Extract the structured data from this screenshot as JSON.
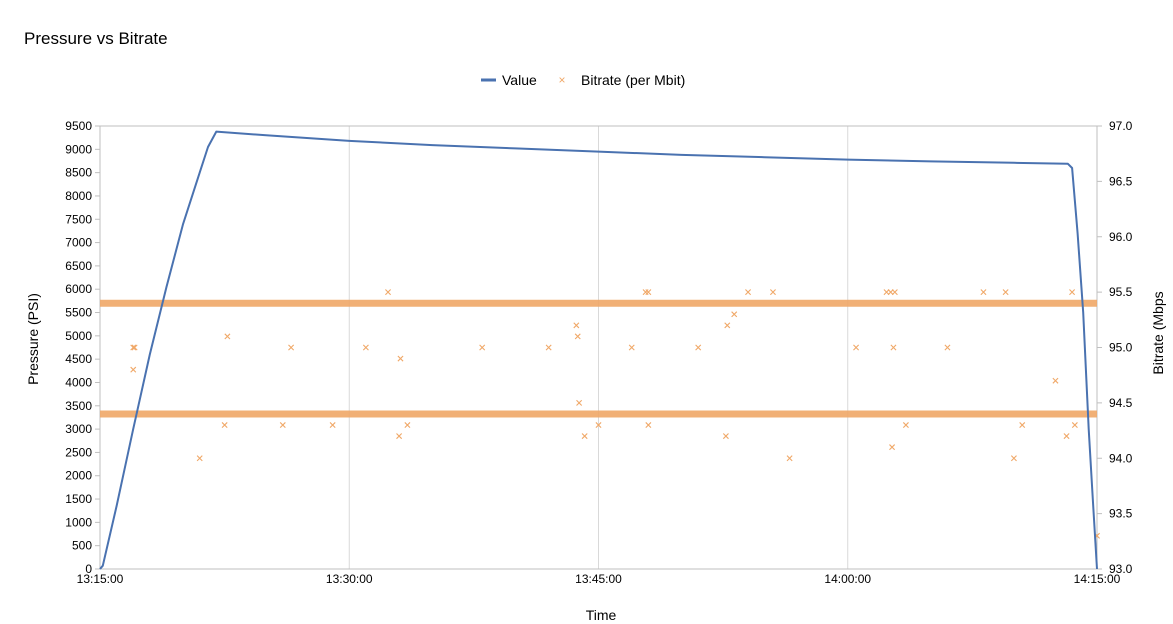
{
  "chart_data": {
    "type": "line",
    "title": "Pressure vs Bitrate",
    "xlabel": "Time",
    "ylabel": "Pressure (PSI)",
    "y2label": "Bitrate (Mbps",
    "xlim": [
      "13:15:00",
      "14:15:00"
    ],
    "ylim": [
      0,
      9500
    ],
    "y2lim": [
      93.0,
      97.0
    ],
    "x_ticks": [
      "13:15:00",
      "13:30:00",
      "13:45:00",
      "14:00:00",
      "14:15:00"
    ],
    "y_ticks": [
      0,
      500,
      1000,
      1500,
      2000,
      2500,
      3000,
      3500,
      4000,
      4500,
      5000,
      5500,
      6000,
      6500,
      7000,
      7500,
      8000,
      8500,
      9000,
      9500
    ],
    "y2_ticks": [
      "93.0",
      "93.5",
      "94.0",
      "94.5",
      "95.0",
      "95.5",
      "96.0",
      "96.5",
      "97.0"
    ],
    "grid": "vertical",
    "legend": "top-center",
    "series": [
      {
        "name": "Value",
        "kind": "line",
        "axis": "left",
        "color": "#4a72b0",
        "points": [
          [
            "13:15:00",
            0
          ],
          [
            "13:15:10",
            70
          ],
          [
            "13:16:00",
            1350
          ],
          [
            "13:17:00",
            3000
          ],
          [
            "13:18:00",
            4600
          ],
          [
            "13:19:00",
            6050
          ],
          [
            "13:20:00",
            7400
          ],
          [
            "13:21:00",
            8500
          ],
          [
            "13:21:30",
            9050
          ],
          [
            "13:22:00",
            9380
          ],
          [
            "13:25:00",
            9300
          ],
          [
            "13:30:00",
            9180
          ],
          [
            "13:35:00",
            9090
          ],
          [
            "13:40:00",
            9020
          ],
          [
            "13:45:00",
            8950
          ],
          [
            "13:50:00",
            8880
          ],
          [
            "13:55:00",
            8830
          ],
          [
            "14:00:00",
            8780
          ],
          [
            "14:05:00",
            8740
          ],
          [
            "14:10:00",
            8710
          ],
          [
            "14:13:15",
            8690
          ],
          [
            "14:13:30",
            8600
          ],
          [
            "14:13:50",
            7200
          ],
          [
            "14:14:10",
            5500
          ],
          [
            "14:14:30",
            3000
          ],
          [
            "14:14:45",
            1500
          ],
          [
            "14:15:00",
            0
          ]
        ]
      },
      {
        "name": "Bitrate (per Mbit)",
        "kind": "scatter",
        "axis": "right",
        "color": "#f0a868",
        "band_values": [
          94.4,
          95.4
        ],
        "points": [
          [
            "13:17:00",
            95.0
          ],
          [
            "13:17:05",
            95.0
          ],
          [
            "13:17:00",
            94.8
          ],
          [
            "13:21:00",
            94.0
          ],
          [
            "13:22:30",
            94.3
          ],
          [
            "13:22:40",
            95.1
          ],
          [
            "13:26:00",
            94.3
          ],
          [
            "13:26:30",
            95.0
          ],
          [
            "13:29:00",
            94.3
          ],
          [
            "13:31:00",
            95.0
          ],
          [
            "13:32:20",
            95.5
          ],
          [
            "13:33:00",
            94.2
          ],
          [
            "13:33:05",
            94.9
          ],
          [
            "13:33:30",
            94.3
          ],
          [
            "13:38:00",
            95.0
          ],
          [
            "13:42:00",
            95.0
          ],
          [
            "13:43:40",
            95.2
          ],
          [
            "13:43:45",
            95.1
          ],
          [
            "13:43:50",
            94.5
          ],
          [
            "13:44:10",
            94.2
          ],
          [
            "13:45:00",
            94.3
          ],
          [
            "13:47:00",
            95.0
          ],
          [
            "13:47:50",
            95.5
          ],
          [
            "13:48:00",
            95.5
          ],
          [
            "13:48:00",
            94.3
          ],
          [
            "13:51:00",
            95.0
          ],
          [
            "13:52:40",
            94.2
          ],
          [
            "13:52:45",
            95.2
          ],
          [
            "13:53:10",
            95.3
          ],
          [
            "13:54:00",
            95.5
          ],
          [
            "13:55:30",
            95.5
          ],
          [
            "13:56:30",
            94.0
          ],
          [
            "14:00:30",
            95.0
          ],
          [
            "14:02:20",
            95.5
          ],
          [
            "14:02:35",
            95.5
          ],
          [
            "14:02:50",
            95.5
          ],
          [
            "14:02:40",
            94.1
          ],
          [
            "14:02:45",
            95.0
          ],
          [
            "14:03:30",
            94.3
          ],
          [
            "14:06:00",
            95.0
          ],
          [
            "14:08:10",
            95.5
          ],
          [
            "14:09:30",
            95.5
          ],
          [
            "14:10:00",
            94.0
          ],
          [
            "14:10:30",
            94.3
          ],
          [
            "14:12:30",
            94.7
          ],
          [
            "14:13:10",
            94.2
          ],
          [
            "14:13:30",
            95.5
          ],
          [
            "14:13:40",
            94.3
          ],
          [
            "14:15:00",
            93.3
          ]
        ]
      }
    ]
  }
}
